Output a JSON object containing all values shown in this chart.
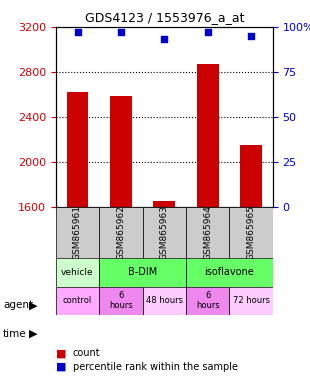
{
  "title": "GDS4123 / 1553976_a_at",
  "samples": [
    "GSM865961",
    "GSM865962",
    "GSM865963",
    "GSM865964",
    "GSM865965"
  ],
  "counts": [
    2620,
    2590,
    1650,
    2870,
    2150
  ],
  "percentiles": [
    97,
    97,
    93,
    97,
    95
  ],
  "ylim_left": [
    1600,
    3200
  ],
  "ylim_right": [
    0,
    100
  ],
  "yticks_left": [
    1600,
    2000,
    2400,
    2800,
    3200
  ],
  "yticks_right": [
    0,
    25,
    50,
    75,
    100
  ],
  "ytick_labels_right": [
    "0",
    "25",
    "50",
    "75",
    "100%"
  ],
  "bar_color": "#cc0000",
  "dot_color": "#0000cc",
  "bar_bottom": 1600,
  "agent_row": {
    "vehicle": {
      "cols": [
        0
      ],
      "color": "#ccffcc",
      "label": "vehicle"
    },
    "bdim": {
      "cols": [
        1,
        2
      ],
      "color": "#66ff66",
      "label": "B-DIM"
    },
    "isoflavone": {
      "cols": [
        3,
        4
      ],
      "color": "#66ff66",
      "label": "isoflavone"
    }
  },
  "time_row": {
    "control": {
      "cols": [
        0
      ],
      "color": "#ffaaff",
      "label": "control"
    },
    "6h_1": {
      "cols": [
        1
      ],
      "color": "#ff88ff",
      "label": "6\nhours"
    },
    "48h": {
      "cols": [
        2
      ],
      "color": "#ffbbff",
      "label": "48 hours"
    },
    "6h_2": {
      "cols": [
        3
      ],
      "color": "#ff88ff",
      "label": "6\nhours"
    },
    "72h": {
      "cols": [
        4
      ],
      "color": "#ffbbff",
      "label": "72 hours"
    }
  },
  "legend_count_color": "#cc0000",
  "legend_dot_color": "#0000cc",
  "grid_color": "#000000",
  "background_color": "#ffffff"
}
